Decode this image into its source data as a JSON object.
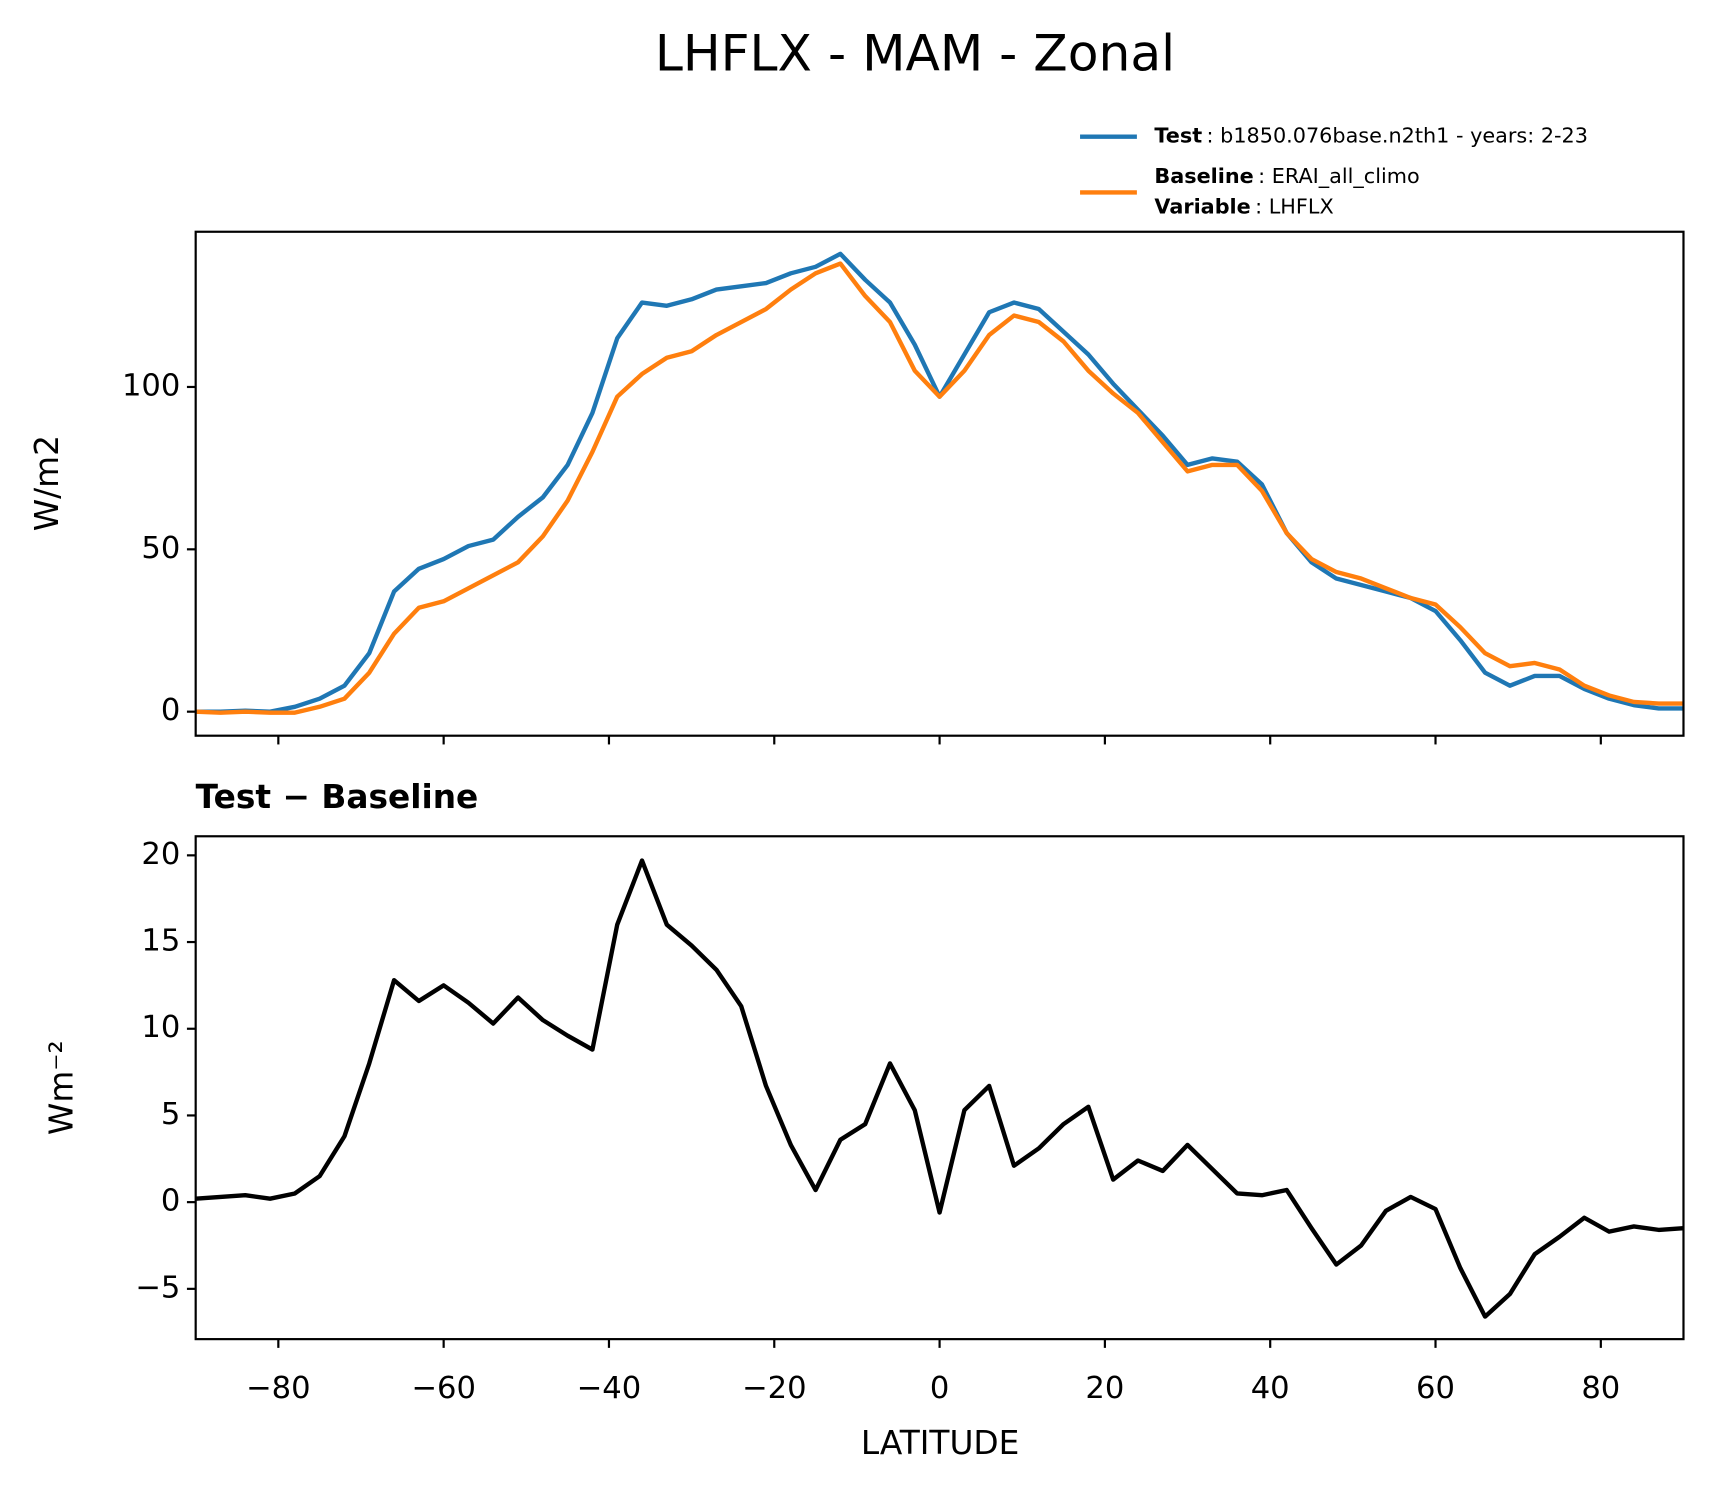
{
  "title": "LHFLX - MAM - Zonal",
  "chart_data": [
    {
      "type": "line",
      "ylabel": "W/m2",
      "x": [
        -90,
        -87,
        -84,
        -81,
        -78,
        -75,
        -72,
        -69,
        -66,
        -63,
        -60,
        -57,
        -54,
        -51,
        -48,
        -45,
        -42,
        -39,
        -36,
        -33,
        -30,
        -27,
        -24,
        -21,
        -18,
        -15,
        -12,
        -9,
        -6,
        -3,
        0,
        3,
        6,
        9,
        12,
        15,
        18,
        21,
        24,
        27,
        30,
        33,
        36,
        39,
        42,
        45,
        48,
        51,
        54,
        57,
        60,
        63,
        66,
        69,
        72,
        75,
        78,
        81,
        84,
        87,
        90
      ],
      "series": [
        {
          "name": "Test",
          "description": ": b1850.076base.n2th1 - years: 2-23",
          "color": "#1f77b4",
          "values": [
            0,
            0,
            0.3,
            0,
            1.5,
            4,
            8,
            18,
            37,
            44,
            47,
            51,
            53,
            60,
            66,
            76,
            92,
            115,
            126,
            125,
            127,
            130,
            131,
            132,
            135,
            137,
            141,
            133,
            126,
            113,
            97,
            110,
            123,
            126,
            124,
            117,
            110,
            101,
            93,
            85,
            76,
            78,
            77,
            70,
            55,
            46,
            41,
            39,
            37,
            35,
            31,
            22,
            12,
            8,
            11,
            11,
            7,
            4,
            2,
            1,
            1
          ]
        },
        {
          "name": "Baseline",
          "description": ": ERAI_all_climo",
          "note_name": "Variable",
          "note_description": ": LHFLX",
          "color": "#ff7f0e",
          "values": [
            0,
            -0.3,
            0,
            -0.3,
            -0.3,
            1.5,
            4,
            12,
            24,
            32,
            34,
            38,
            42,
            46,
            54,
            65,
            80,
            97,
            104,
            109,
            111,
            116,
            120,
            124,
            130,
            135,
            138,
            128,
            120,
            105,
            97,
            105,
            116,
            122,
            120,
            114,
            105,
            98,
            92,
            83,
            74,
            76,
            76,
            68,
            55,
            47,
            43,
            41,
            38,
            35,
            33,
            26,
            18,
            14,
            15,
            13,
            8,
            5,
            3,
            2.5,
            2.5
          ]
        }
      ],
      "xlim": [
        -90,
        90
      ],
      "xticks": [
        -80,
        -60,
        -40,
        -20,
        0,
        20,
        40,
        60,
        80
      ],
      "ylim": [
        -7.4,
        147.8
      ],
      "yticks": [
        0,
        50,
        100
      ]
    },
    {
      "type": "line",
      "title": "Test − Baseline",
      "xlabel": "LATITUDE",
      "ylabel": "Wm⁻²",
      "color": "#000000",
      "x": [
        -90,
        -87,
        -84,
        -81,
        -78,
        -75,
        -72,
        -69,
        -66,
        -63,
        -60,
        -57,
        -54,
        -51,
        -48,
        -45,
        -42,
        -39,
        -36,
        -33,
        -30,
        -27,
        -24,
        -21,
        -18,
        -15,
        -12,
        -9,
        -6,
        -3,
        0,
        3,
        6,
        9,
        12,
        15,
        18,
        21,
        24,
        27,
        30,
        33,
        36,
        39,
        42,
        45,
        48,
        51,
        54,
        57,
        60,
        63,
        66,
        69,
        72,
        75,
        78,
        81,
        84,
        87,
        90
      ],
      "values": [
        0.2,
        0.3,
        0.4,
        0.2,
        0.5,
        1.5,
        3.8,
        8,
        12.8,
        11.6,
        12.5,
        11.5,
        10.3,
        11.8,
        10.5,
        9.6,
        8.8,
        16,
        19.7,
        16,
        14.8,
        13.4,
        11.3,
        6.7,
        3.3,
        0.7,
        3.6,
        4.5,
        8,
        5.3,
        -0.6,
        5.3,
        6.7,
        2.1,
        3.1,
        4.5,
        5.5,
        1.3,
        2.4,
        1.8,
        3.3,
        1.9,
        0.5,
        0.4,
        0.7,
        -1.5,
        -3.6,
        -2.5,
        -0.5,
        0.3,
        -0.4,
        -3.8,
        -6.6,
        -5.3,
        -3,
        -2,
        -0.9,
        -1.7,
        -1.4,
        -1.6,
        -1.5
      ],
      "xlim": [
        -90,
        90
      ],
      "xticks": [
        {
          "value": -80,
          "label": "−80"
        },
        {
          "value": -60,
          "label": "−60"
        },
        {
          "value": -40,
          "label": "−40"
        },
        {
          "value": -20,
          "label": "−20"
        },
        0,
        20,
        40,
        60,
        80
      ],
      "ylim": [
        -7.9,
        21.1
      ],
      "yticks": [
        {
          "value": -5,
          "label": "−5"
        },
        0,
        5,
        10,
        15,
        20
      ]
    }
  ]
}
